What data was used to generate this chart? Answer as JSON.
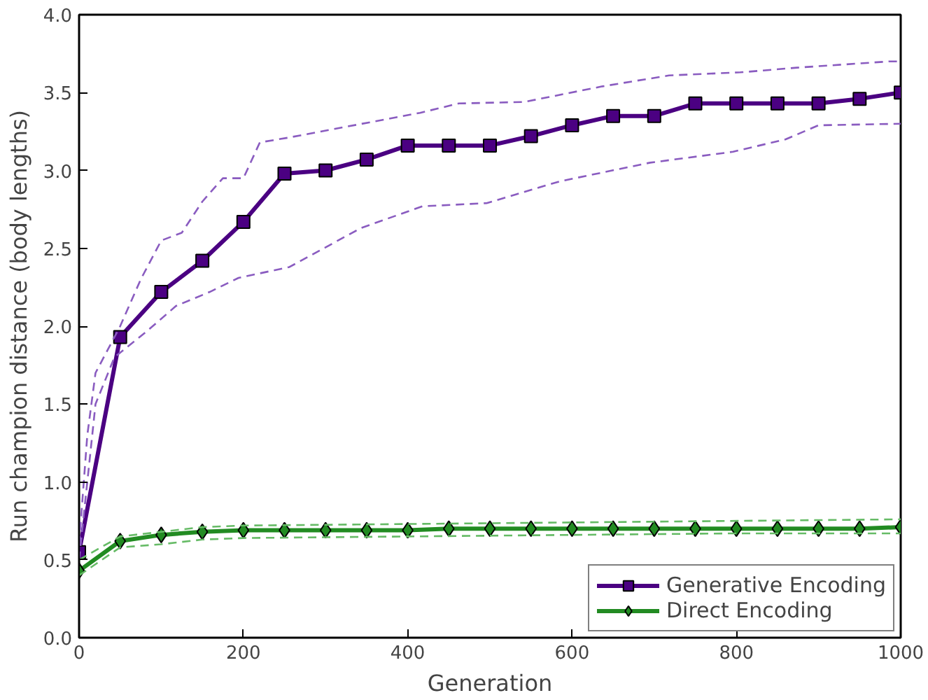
{
  "chart_data": {
    "type": "line",
    "xlabel": "Generation",
    "ylabel": "Run champion distance (body lengths)",
    "xlim": [
      0,
      1000
    ],
    "ylim": [
      0,
      4
    ],
    "xticks": [
      0,
      200,
      400,
      600,
      800,
      1000
    ],
    "yticks": [
      {
        "value": 0,
        "label": "0.0"
      },
      {
        "value": 0.5,
        "label": "0.5"
      },
      {
        "value": 1,
        "label": "1.0"
      },
      {
        "value": 1.5,
        "label": "1.5"
      },
      {
        "value": 2,
        "label": "2.0"
      },
      {
        "value": 2.5,
        "label": "2.5"
      },
      {
        "value": 3,
        "label": "3.0"
      },
      {
        "value": 3.5,
        "label": "3.5"
      },
      {
        "value": 4,
        "label": "4.0"
      }
    ],
    "grid": false,
    "legend": "bottom right",
    "series": [
      {
        "name": "Generative Encoding",
        "color": "#4b0082",
        "marker": "square",
        "x": [
          0,
          50,
          100,
          150,
          200,
          250,
          300,
          350,
          400,
          450,
          500,
          550,
          600,
          650,
          700,
          750,
          800,
          850,
          900,
          950,
          1000
        ],
        "values": [
          0.55,
          1.93,
          2.22,
          2.42,
          2.67,
          2.98,
          3.0,
          3.07,
          3.16,
          3.16,
          3.16,
          3.22,
          3.29,
          3.35,
          3.35,
          3.43,
          3.43,
          3.43,
          3.43,
          3.46,
          3.5
        ]
      },
      {
        "name": "Direct Encoding",
        "color": "#228b22",
        "marker": "diamond",
        "x": [
          0,
          50,
          100,
          150,
          200,
          250,
          300,
          350,
          400,
          450,
          500,
          550,
          600,
          650,
          700,
          750,
          800,
          850,
          900,
          950,
          1000
        ],
        "values": [
          0.43,
          0.62,
          0.66,
          0.68,
          0.69,
          0.69,
          0.69,
          0.69,
          0.69,
          0.7,
          0.7,
          0.7,
          0.7,
          0.7,
          0.7,
          0.7,
          0.7,
          0.7,
          0.7,
          0.7,
          0.71
        ]
      },
      {
        "color": "#8a5cc0",
        "marker": "none",
        "line_style": "dashed",
        "x": [
          0,
          10,
          20,
          50,
          75,
          100,
          125,
          150,
          175,
          200,
          220,
          254,
          415,
          462,
          542,
          637,
          718,
          805,
          874,
          986,
          1000
        ],
        "values": [
          0.6,
          1.3,
          1.7,
          2.0,
          2.3,
          2.55,
          2.6,
          2.8,
          2.95,
          2.95,
          3.18,
          3.21,
          3.37,
          3.43,
          3.44,
          3.54,
          3.61,
          3.63,
          3.66,
          3.7,
          3.7
        ]
      },
      {
        "color": "#8a5cc0",
        "marker": "none",
        "line_style": "dashed",
        "x": [
          0,
          20,
          43,
          83,
          118,
          159,
          194,
          256,
          343,
          418,
          496,
          585,
          695,
          796,
          860,
          900,
          1000
        ],
        "values": [
          0.5,
          1.5,
          1.8,
          1.97,
          2.13,
          2.22,
          2.31,
          2.38,
          2.63,
          2.77,
          2.79,
          2.93,
          3.05,
          3.12,
          3.2,
          3.29,
          3.3
        ]
      },
      {
        "color": "#66bb66",
        "marker": "none",
        "line_style": "dashed",
        "x": [
          0,
          50,
          100,
          150,
          200,
          400,
          600,
          800,
          1000
        ],
        "values": [
          0.5,
          0.65,
          0.68,
          0.71,
          0.72,
          0.73,
          0.74,
          0.75,
          0.76
        ]
      },
      {
        "color": "#66bb66",
        "marker": "none",
        "line_style": "dashed",
        "x": [
          0,
          50,
          100,
          150,
          200,
          400,
          600,
          800,
          1000
        ],
        "values": [
          0.4,
          0.58,
          0.6,
          0.63,
          0.64,
          0.65,
          0.66,
          0.67,
          0.67
        ]
      }
    ]
  }
}
